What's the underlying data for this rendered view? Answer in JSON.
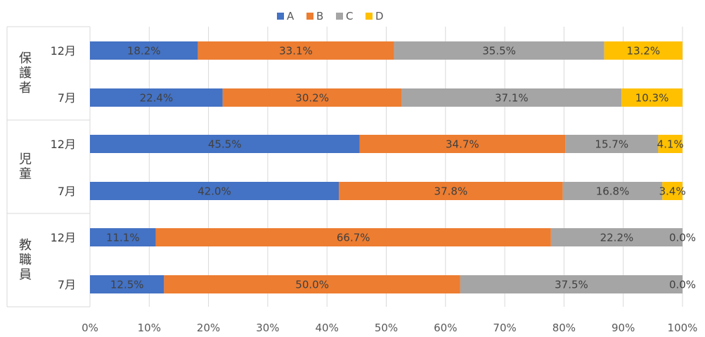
{
  "chart_data": {
    "type": "bar",
    "orientation": "horizontal",
    "stacked": "percent",
    "groups": [
      {
        "label": "保護者",
        "categories": [
          "12月",
          "7月"
        ]
      },
      {
        "label": "児童",
        "categories": [
          "12月",
          "7月"
        ]
      },
      {
        "label": "教職員",
        "categories": [
          "12月",
          "7月"
        ]
      }
    ],
    "series": [
      {
        "name": "A",
        "color": "#4472C4",
        "values": [
          18.2,
          22.4,
          45.5,
          42.0,
          11.1,
          12.5
        ],
        "labels": [
          "18.2%",
          "22.4%",
          "45.5%",
          "42.0%",
          "11.1%",
          "12.5%"
        ]
      },
      {
        "name": "B",
        "color": "#ED7D31",
        "values": [
          33.1,
          30.2,
          34.7,
          37.8,
          66.7,
          50.0
        ],
        "labels": [
          "33.1%",
          "30.2%",
          "34.7%",
          "37.8%",
          "66.7%",
          "50.0%"
        ]
      },
      {
        "name": "C",
        "color": "#A5A5A5",
        "values": [
          35.5,
          37.1,
          15.7,
          16.8,
          22.2,
          37.5
        ],
        "labels": [
          "35.5%",
          "37.1%",
          "15.7%",
          "16.8%",
          "22.2%",
          "37.5%"
        ]
      },
      {
        "name": "D",
        "color": "#FFC000",
        "values": [
          13.2,
          10.3,
          4.1,
          3.4,
          0.0,
          0.0
        ],
        "labels": [
          "13.2%",
          "10.3%",
          "4.1%",
          "3.4%",
          "0.0%",
          "0.0%"
        ]
      }
    ],
    "xlim": [
      0,
      100
    ],
    "x_ticks": [
      "0%",
      "10%",
      "20%",
      "30%",
      "40%",
      "50%",
      "60%",
      "70%",
      "80%",
      "90%",
      "100%"
    ],
    "grid": true,
    "legend_position": "top"
  }
}
